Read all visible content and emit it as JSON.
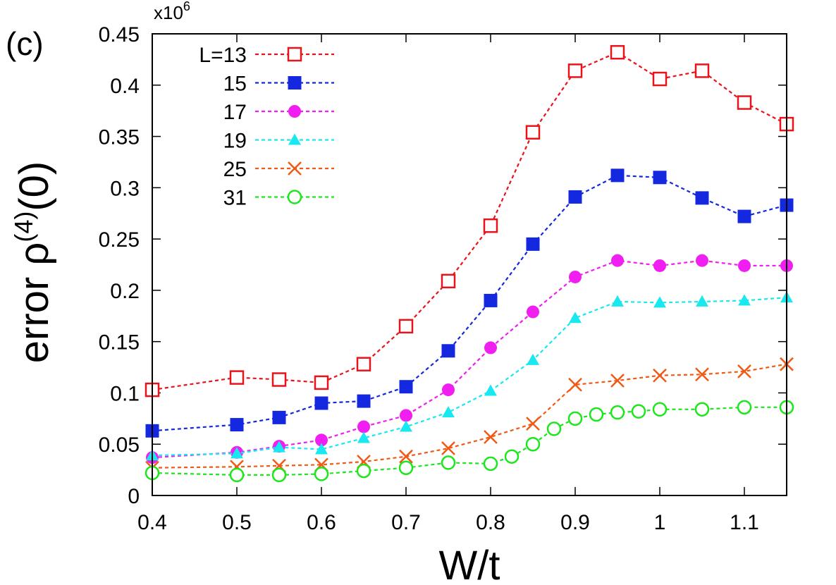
{
  "chart_data": {
    "type": "line",
    "panel_label": "(c)",
    "multiplier_label": "x10",
    "multiplier_exponent": "6",
    "xlabel": "W/t",
    "ylabel_prefix": "error ρ",
    "ylabel_superscript": "(4)",
    "ylabel_suffix": "(0)",
    "xlim": [
      0.4,
      1.15
    ],
    "ylim": [
      0,
      0.45
    ],
    "x_ticks": [
      0.4,
      0.5,
      0.6,
      0.7,
      0.8,
      0.9,
      1,
      1.1
    ],
    "x_tick_labels": [
      "0.4",
      "0.5",
      "0.6",
      "0.7",
      "0.8",
      "0.9",
      "1",
      "1.1"
    ],
    "y_ticks": [
      0,
      0.05,
      0.1,
      0.15,
      0.2,
      0.25,
      0.3,
      0.35,
      0.4,
      0.45
    ],
    "y_tick_labels": [
      "0",
      "0.05",
      "0.1",
      "0.15",
      "0.2",
      "0.25",
      "0.3",
      "0.35",
      "0.4",
      "0.45"
    ],
    "grid": false,
    "legend_position": "top-left",
    "series": [
      {
        "name": "L=13",
        "color": "#e8141c",
        "marker": "open-square",
        "x": [
          0.4,
          0.5,
          0.55,
          0.6,
          0.65,
          0.7,
          0.75,
          0.8,
          0.85,
          0.9,
          0.95,
          1.0,
          1.05,
          1.1,
          1.15
        ],
        "y": [
          0.103,
          0.115,
          0.113,
          0.11,
          0.128,
          0.165,
          0.209,
          0.263,
          0.354,
          0.414,
          0.432,
          0.406,
          0.414,
          0.383,
          0.362
        ]
      },
      {
        "name": "15",
        "color": "#1428e0",
        "marker": "filled-square",
        "x": [
          0.4,
          0.5,
          0.55,
          0.6,
          0.65,
          0.7,
          0.75,
          0.8,
          0.85,
          0.9,
          0.95,
          1.0,
          1.05,
          1.1,
          1.15
        ],
        "y": [
          0.063,
          0.069,
          0.076,
          0.09,
          0.092,
          0.106,
          0.141,
          0.19,
          0.245,
          0.291,
          0.312,
          0.31,
          0.29,
          0.272,
          0.283
        ]
      },
      {
        "name": "17",
        "color": "#f01ef0",
        "marker": "filled-circle",
        "x": [
          0.4,
          0.5,
          0.55,
          0.6,
          0.65,
          0.7,
          0.75,
          0.8,
          0.85,
          0.9,
          0.95,
          1.0,
          1.05,
          1.1,
          1.15
        ],
        "y": [
          0.037,
          0.042,
          0.048,
          0.054,
          0.067,
          0.078,
          0.103,
          0.144,
          0.179,
          0.213,
          0.229,
          0.224,
          0.229,
          0.224,
          0.224
        ]
      },
      {
        "name": "19",
        "color": "#18e8f0",
        "marker": "filled-triangle",
        "x": [
          0.4,
          0.5,
          0.55,
          0.6,
          0.65,
          0.7,
          0.75,
          0.8,
          0.85,
          0.9,
          0.95,
          1.0,
          1.05,
          1.1,
          1.15
        ],
        "y": [
          0.039,
          0.041,
          0.047,
          0.045,
          0.056,
          0.067,
          0.081,
          0.102,
          0.132,
          0.173,
          0.189,
          0.188,
          0.189,
          0.19,
          0.193
        ]
      },
      {
        "name": "25",
        "color": "#f05a14",
        "marker": "cross",
        "x": [
          0.4,
          0.5,
          0.55,
          0.6,
          0.65,
          0.7,
          0.75,
          0.8,
          0.85,
          0.9,
          0.95,
          1.0,
          1.05,
          1.1,
          1.15
        ],
        "y": [
          0.027,
          0.028,
          0.029,
          0.03,
          0.033,
          0.038,
          0.046,
          0.057,
          0.07,
          0.108,
          0.112,
          0.117,
          0.118,
          0.121,
          0.128
        ]
      },
      {
        "name": "31",
        "color": "#1ee61e",
        "marker": "open-circle",
        "x": [
          0.4,
          0.5,
          0.55,
          0.6,
          0.65,
          0.7,
          0.75,
          0.8,
          0.825,
          0.85,
          0.875,
          0.9,
          0.925,
          0.95,
          0.975,
          1.0,
          1.05,
          1.1,
          1.15
        ],
        "y": [
          0.022,
          0.02,
          0.02,
          0.021,
          0.024,
          0.027,
          0.032,
          0.031,
          0.038,
          0.05,
          0.065,
          0.075,
          0.079,
          0.081,
          0.082,
          0.084,
          0.084,
          0.086,
          0.086
        ]
      }
    ]
  }
}
